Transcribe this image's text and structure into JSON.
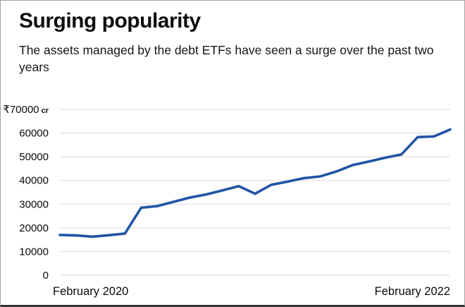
{
  "header": {
    "title": "Surging popularity",
    "subtitle": "The assets managed by the debt ETFs have seen a surge over the past two years"
  },
  "chart_data": {
    "type": "line",
    "title": "Surging popularity",
    "subtitle": "The assets managed by the debt ETFs have seen a surge over the past two years",
    "currency_symbol": "₹",
    "unit": "cr",
    "y_top_tick_label": "₹70000 cr",
    "x": [
      "Feb 2020",
      "Mar 2020",
      "Apr 2020",
      "May 2020",
      "Jun 2020",
      "Jul 2020",
      "Aug 2020",
      "Sep 2020",
      "Oct 2020",
      "Nov 2020",
      "Dec 2020",
      "Jan 2021",
      "Feb 2021",
      "Mar 2021",
      "Apr 2021",
      "May 2021",
      "Jun 2021",
      "Jul 2021",
      "Aug 2021",
      "Sep 2021",
      "Oct 2021",
      "Nov 2021",
      "Dec 2021",
      "Jan 2022",
      "Feb 2022"
    ],
    "series": [
      {
        "name": "Assets managed by debt ETFs (₹ cr)",
        "values": [
          17000,
          16800,
          16300,
          16900,
          17600,
          28500,
          29200,
          31000,
          32800,
          34100,
          35800,
          37600,
          34400,
          38200,
          39500,
          41000,
          41700,
          43800,
          46500,
          48000,
          49600,
          51000,
          58300,
          58600,
          61500
        ]
      }
    ],
    "ylim": [
      0,
      70000
    ],
    "y_ticks": [
      0,
      10000,
      20000,
      30000,
      40000,
      50000,
      60000,
      70000
    ],
    "x_visible_start_label": "February 2020",
    "x_visible_end_label": "February 2022",
    "grid": "horizontal",
    "legend": "none",
    "line_color": "#2154a6",
    "gridline_color": "#d9d9d9",
    "text_color": "#0b0b0b"
  }
}
